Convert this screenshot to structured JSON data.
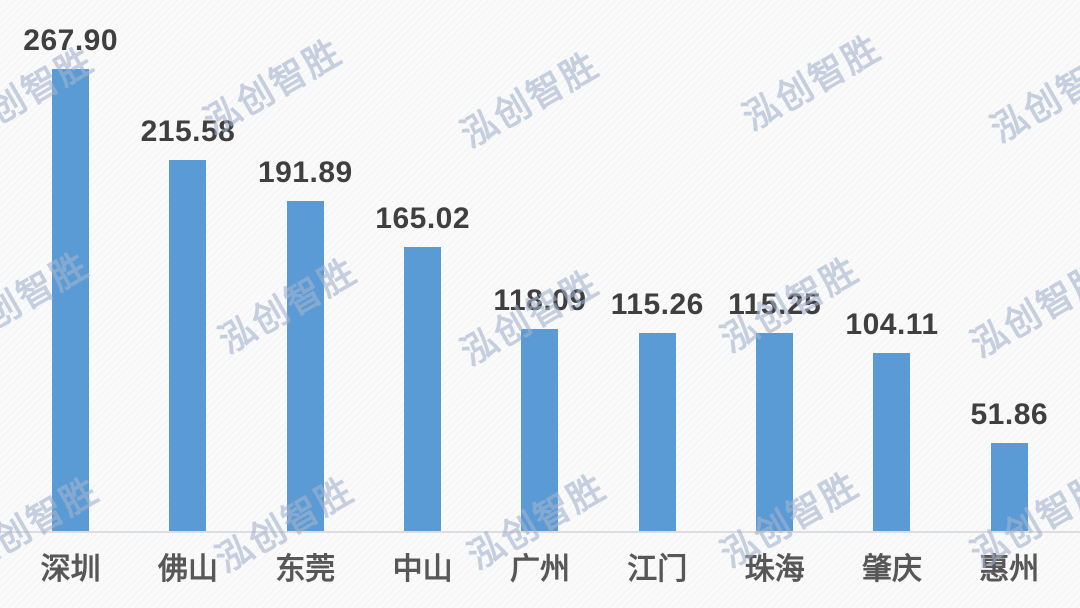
{
  "chart_data": {
    "type": "bar",
    "title": "",
    "xlabel": "",
    "ylabel": "",
    "categories": [
      "深圳",
      "佛山",
      "东莞",
      "中山",
      "广州",
      "江门",
      "珠海",
      "肇庆",
      "惠州"
    ],
    "values": [
      267.9,
      215.58,
      191.89,
      165.02,
      118.09,
      115.26,
      115.25,
      104.11,
      51.86
    ],
    "value_labels": [
      "267.90",
      "215.58",
      "191.89",
      "165.02",
      "118.09",
      "115.26",
      "115.25",
      "104.11",
      "51.86"
    ],
    "ylim": [
      0,
      280
    ],
    "grid": false,
    "legend": "none",
    "bar_color": "#5B9BD5"
  },
  "watermark": {
    "text": "泓创智胜",
    "color": "#c8d2e1"
  },
  "colors": {
    "bar": "#5B9BD5",
    "value_label": "#3f3f3f",
    "category_label": "#575757",
    "axis_line": "#dcddde",
    "background": "#f8f8f9"
  }
}
